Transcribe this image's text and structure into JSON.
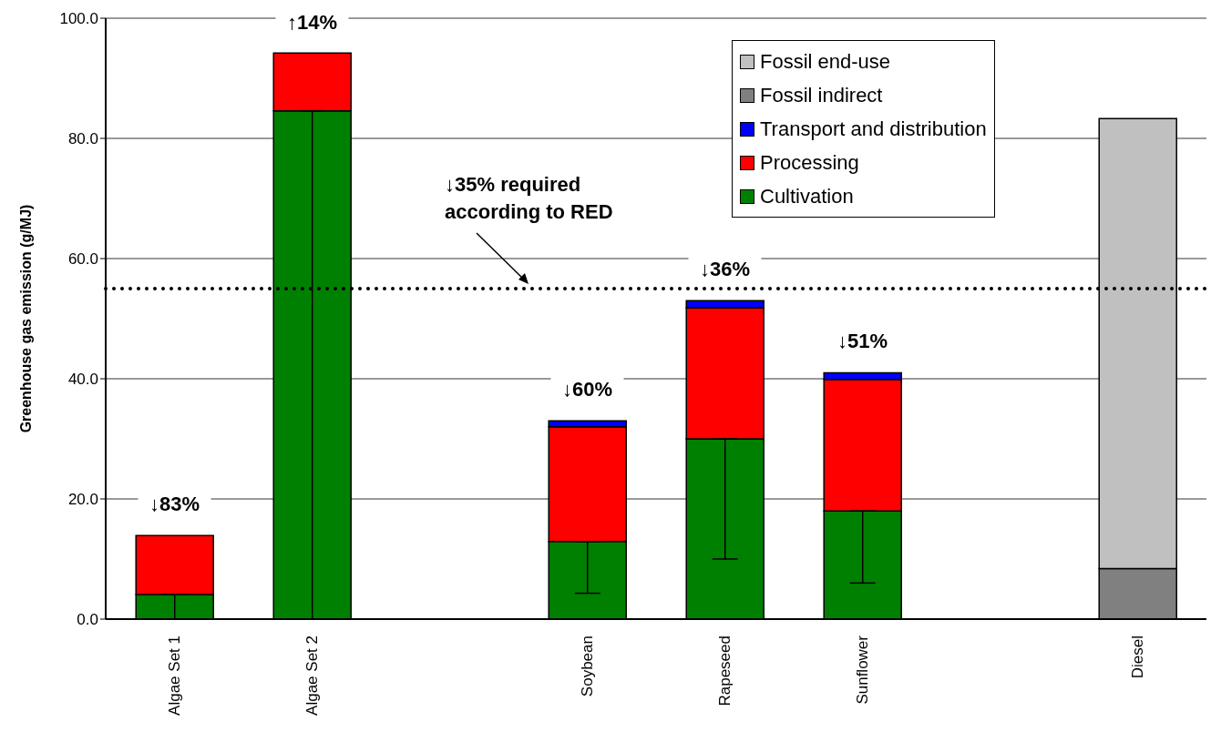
{
  "chart_data": {
    "type": "bar",
    "stacked": true,
    "ylabel": "Greenhouse gas emission (g/MJ)",
    "categories": [
      "Algae Set 1",
      "Algae Set 2",
      null,
      "Soybean",
      "Rapeseed",
      "Sunflower",
      null,
      "Diesel"
    ],
    "series": [
      {
        "name": "Cultivation",
        "color": "#008000",
        "values": [
          4.1,
          84.6,
          null,
          12.9,
          30,
          18,
          null,
          null
        ],
        "errors": [
          [
            0,
            4.1
          ],
          [
            0,
            84.6
          ],
          null,
          [
            4.3,
            12.9
          ],
          [
            10,
            30
          ],
          [
            6,
            18
          ],
          null,
          null
        ]
      },
      {
        "name": "Processing",
        "color": "#ff0000",
        "values": [
          9.8,
          9.6,
          null,
          19.1,
          21.8,
          21.9,
          null,
          null
        ]
      },
      {
        "name": "Transport and distribution",
        "color": "#0000ff",
        "values": [
          null,
          null,
          null,
          1.0,
          1.2,
          1.1,
          null,
          null
        ]
      },
      {
        "name": "Fossil indirect",
        "color": "#808080",
        "values": [
          null,
          null,
          null,
          null,
          null,
          null,
          null,
          8.4
        ]
      },
      {
        "name": "Fossil end-use",
        "color": "#c0c0c0",
        "values": [
          null,
          null,
          null,
          null,
          null,
          null,
          null,
          74.9
        ]
      }
    ],
    "ylim": [
      0,
      100
    ],
    "yticks": [
      {
        "value": 0,
        "label": "0.0"
      },
      {
        "value": 20,
        "label": "20.0"
      },
      {
        "value": 40,
        "label": "40.0"
      },
      {
        "value": 60,
        "label": "60.0"
      },
      {
        "value": 80,
        "label": "80.0"
      },
      {
        "value": 100,
        "label": "100.0"
      }
    ],
    "grid": "y",
    "legend": "top right",
    "ref_lines": [
      {
        "axis": "y",
        "value": 55,
        "line_style": "dotted",
        "color": "#000000"
      }
    ],
    "annotations": [
      {
        "text": "↓83%",
        "x": "Algae Set 1",
        "y": 13.9
      },
      {
        "text": "↑14%",
        "x": "Algae Set 2",
        "y": 94.2
      },
      {
        "text": "↓60%",
        "x": "Soybean",
        "y": 33.0
      },
      {
        "text": "↓36%",
        "x": "Rapeseed",
        "y": 53.0
      },
      {
        "text": "↓51%",
        "x": "Sunflower",
        "y": 41.0
      },
      "↓35% required\naccording to RED"
    ]
  }
}
